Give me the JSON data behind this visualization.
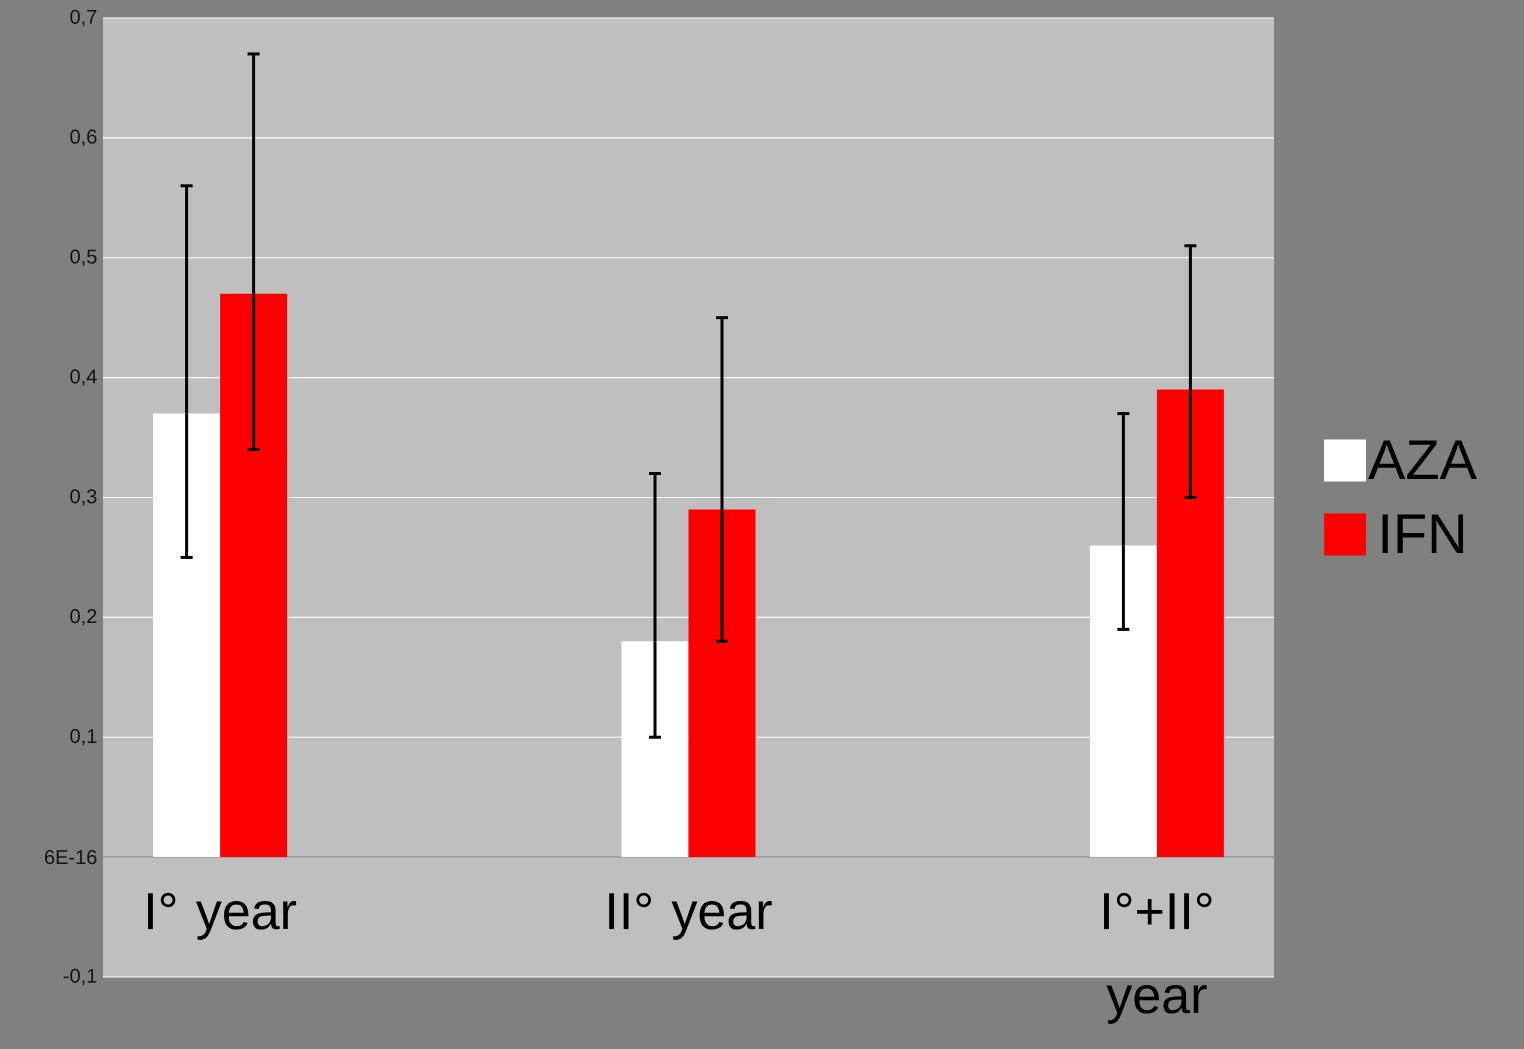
{
  "chart_data": {
    "type": "bar",
    "categories": [
      "I° year",
      "II° year",
      "I°+II° year"
    ],
    "series": [
      {
        "name": "AZA",
        "color": "#ffffff",
        "values": [
          0.37,
          0.18,
          0.26
        ],
        "errors": [
          [
            0.25,
            0.56
          ],
          [
            0.1,
            0.32
          ],
          [
            0.19,
            0.37
          ]
        ]
      },
      {
        "name": "IFN",
        "color": "#ff0000",
        "values": [
          0.47,
          0.29,
          0.39
        ],
        "errors": [
          [
            0.34,
            0.67
          ],
          [
            0.18,
            0.45
          ],
          [
            0.3,
            0.51
          ]
        ]
      }
    ],
    "ylim": [
      -0.1,
      0.7
    ],
    "yticks": [
      {
        "value": -0.1,
        "label": "-0,1"
      },
      {
        "value": 0,
        "label": "6E-16"
      },
      {
        "value": 0.1,
        "label": "0,1"
      },
      {
        "value": 0.2,
        "label": "0,2"
      },
      {
        "value": 0.3,
        "label": "0,3"
      },
      {
        "value": 0.4,
        "label": "0,4"
      },
      {
        "value": 0.5,
        "label": "0,5"
      },
      {
        "value": 0.6,
        "label": "0,6"
      },
      {
        "value": 0.7,
        "label": "0,7"
      }
    ],
    "grid": "y",
    "legend": "right"
  }
}
